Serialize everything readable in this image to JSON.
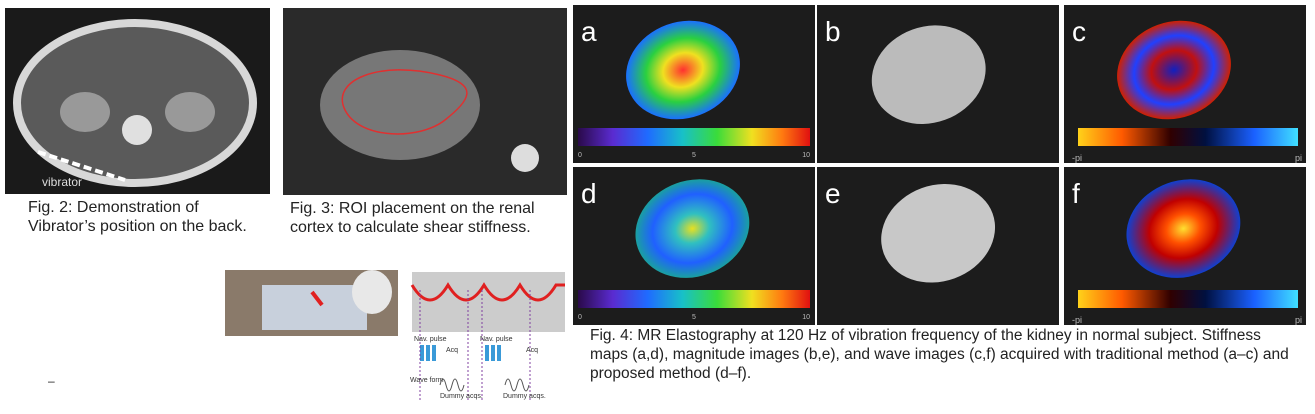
{
  "figure2": {
    "image_label": "vibrator",
    "caption": "Fig. 2: Demonstration of Vibrator’s position on the back."
  },
  "figure3": {
    "caption": "Fig. 3: ROI placement on the renal cortex to calculate shear stiffness."
  },
  "diagram": {
    "labels": [
      "Nav. pulse",
      "Acq",
      "Nav. pulse",
      "Acq",
      "Wave form",
      "Dummy acqs.",
      "Dummy acqs."
    ]
  },
  "figure4": {
    "panels": [
      "a",
      "b",
      "c",
      "d",
      "e",
      "f"
    ],
    "stiffness_scale": [
      "0",
      "5",
      "10"
    ],
    "phase_scale": [
      "-pi",
      "pi"
    ],
    "caption": "Fig. 4: MR Elastography at 120 Hz of vibration frequency of the kidney in normal subject. Stiffness maps (a,d), magnitude images (b,e), and wave images (c,f) acquired with traditional method (a–c) and proposed method (d–f)."
  },
  "stray_mark": "–"
}
